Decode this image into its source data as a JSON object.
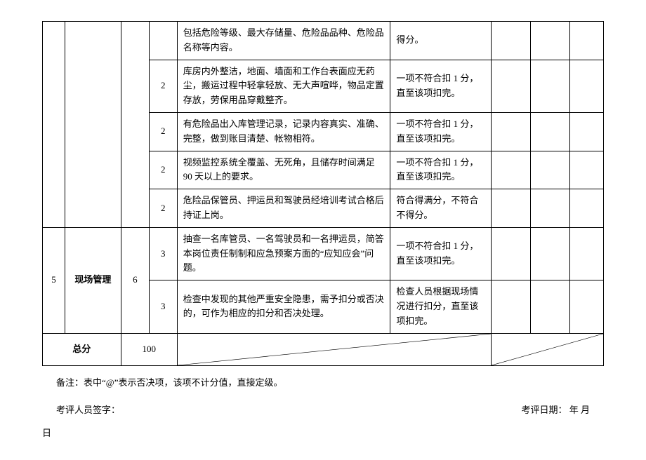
{
  "section4_rows": [
    {
      "pts": "",
      "desc": "包括危险等级、最大存储量、危险品品种、危险品名称等内容。",
      "rule": "得分。"
    },
    {
      "pts": "2",
      "desc": "库房内外整洁，地面、墙面和工作台表面应无药尘，搬运过程中轻拿轻放、无大声喧哗，物品定置存放，劳保用品穿戴整齐。",
      "rule": "一项不符合扣 1 分，直至该项扣完。"
    },
    {
      "pts": "2",
      "desc": "有危险品出入库管理记录，记录内容真实、准确、完整，做到账目清楚、帐物相符。",
      "rule": "一项不符合扣 1 分，直至该项扣完。"
    },
    {
      "pts": "2",
      "desc": "视频监控系统全覆盖、无死角，且储存时间满足 90 天以上的要求。",
      "rule": "一项不符合扣 1 分，直至该项扣完。"
    },
    {
      "pts": "2",
      "desc": "危险品保管员、押运员和驾驶员经培训考试合格后持证上岗。",
      "rule": "符合得满分，不符合不得分。"
    }
  ],
  "section5": {
    "idx": "5",
    "cat": "现场管理",
    "total": "6",
    "rows": [
      {
        "pts": "3",
        "desc": "抽查一名库管员、一名驾驶员和一名押运员，简答本岗位责任制制和应急预案方面的“应知应会”问题。",
        "rule": "一项不符合扣 1 分，直至该项扣完。"
      },
      {
        "pts": "3",
        "desc": "检查中发现的其他严重安全隐患，需予扣分或否决的，可作为相应的扣分和否决处理。",
        "rule": "检查人员根据现场情况进行扣分，直至该项扣完。"
      }
    ]
  },
  "sum": {
    "label": "总分",
    "value": "100"
  },
  "note": "备注：表中“@”表示否决项，该项不计分值，直接定级。",
  "sign_left": "考评人员签字：",
  "sign_right": "考评日期：        年    月",
  "trail": "日"
}
